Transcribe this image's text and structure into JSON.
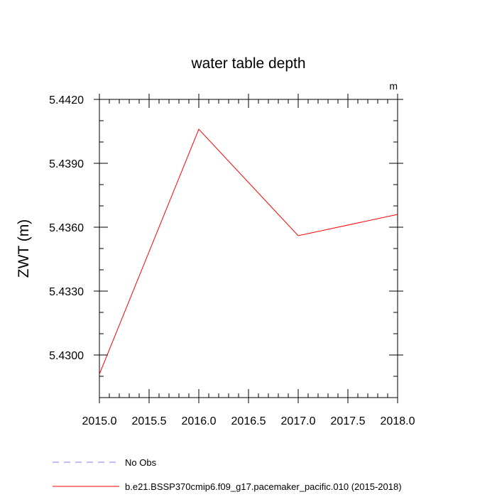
{
  "chart_data": {
    "type": "line",
    "title": "water table depth",
    "units_label": "m",
    "xlabel": "",
    "ylabel": "ZWT  (m)",
    "xlim": [
      2015.0,
      2018.0
    ],
    "ylim": [
      5.428,
      5.442
    ],
    "x_ticks": [
      2015.0,
      2015.5,
      2016.0,
      2016.5,
      2017.0,
      2017.5,
      2018.0
    ],
    "x_tick_labels": [
      "2015.0",
      "2015.5",
      "2016.0",
      "2016.5",
      "2017.0",
      "2017.5",
      "2018.0"
    ],
    "y_ticks": [
      5.442,
      5.439,
      5.436,
      5.433,
      5.43
    ],
    "y_tick_labels": [
      "5.4420",
      "5.4390",
      "5.4360",
      "5.4330",
      "5.4300"
    ],
    "grid": false,
    "legend_position": "bottom-left",
    "series": [
      {
        "name": "No Obs",
        "color": "#8080ff",
        "dash": "dashed",
        "x": [],
        "y": []
      },
      {
        "name": "b.e21.BSSP370cmip6.f09_g17.pacemaker_pacific.010 (2015-2018)",
        "color": "#ff0000",
        "dash": "solid",
        "x": [
          2015.0,
          2016.0,
          2017.0,
          2018.0
        ],
        "y": [
          5.4291,
          5.4406,
          5.4356,
          5.4366
        ]
      }
    ]
  }
}
